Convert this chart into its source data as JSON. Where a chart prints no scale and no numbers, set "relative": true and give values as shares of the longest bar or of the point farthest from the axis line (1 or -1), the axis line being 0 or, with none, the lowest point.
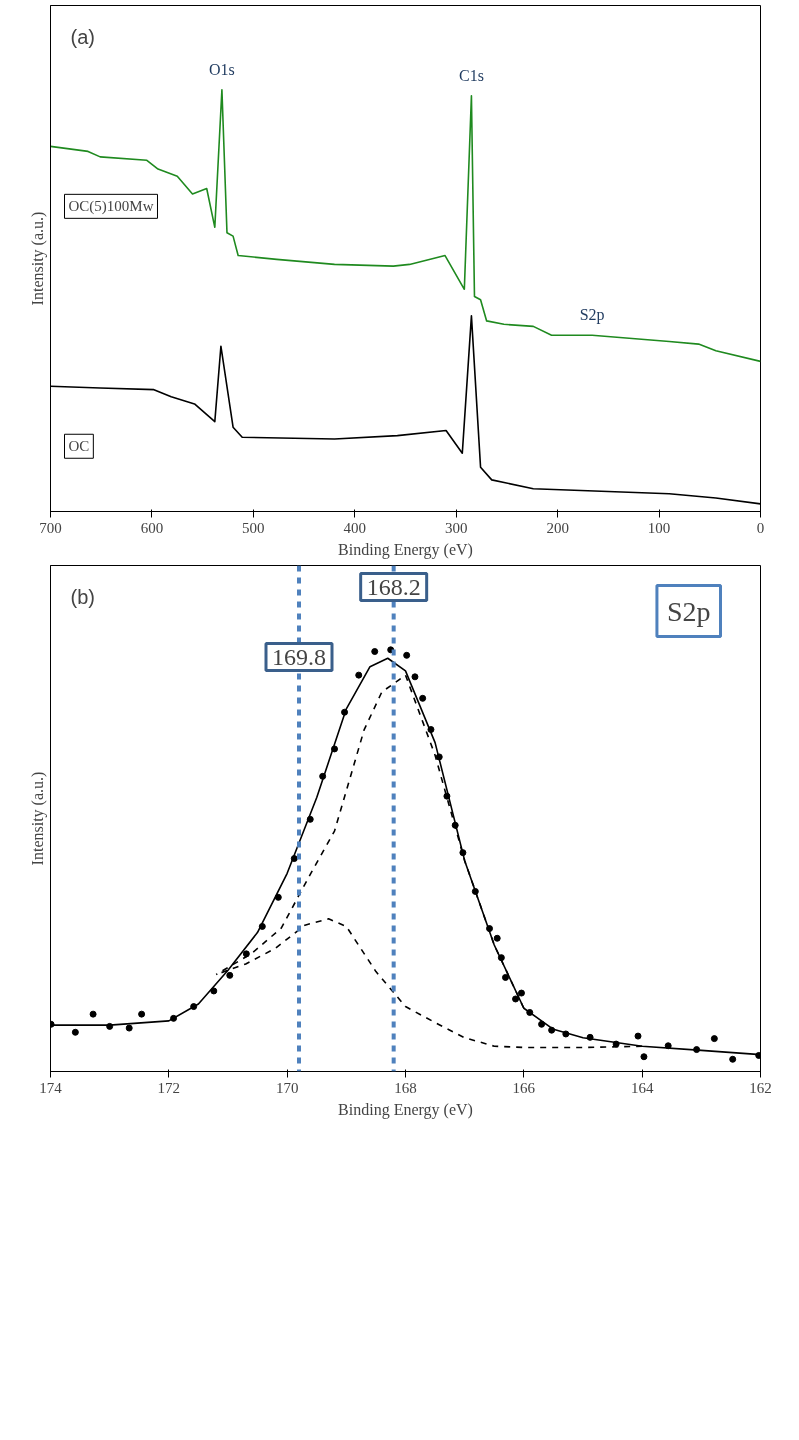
{
  "chart_data": [
    {
      "type": "line",
      "relative": true,
      "xlabel": "Binding Energy (eV)",
      "ylabel": "Intensity (a.u.)",
      "xlim": [
        700,
        0
      ],
      "xticks": [
        0,
        100,
        200,
        300,
        400,
        500,
        600,
        700
      ],
      "series": [
        {
          "name": "OC(5)100Mw",
          "color": "#1f8a1f",
          "x": [
            0,
            44,
            61,
            90,
            166,
            206,
            224,
            253,
            270,
            276,
            282,
            285,
            292,
            311,
            346,
            362,
            420,
            477,
            515,
            520,
            526,
            531,
            538,
            546,
            560,
            575,
            594,
            605,
            651,
            663,
            700
          ],
          "values": [
            0.356,
            0.381,
            0.397,
            0.403,
            0.418,
            0.418,
            0.439,
            0.444,
            0.452,
            0.502,
            0.51,
            0.986,
            0.527,
            0.607,
            0.586,
            0.582,
            0.586,
            0.598,
            0.607,
            0.653,
            0.661,
            1.0,
            0.674,
            0.766,
            0.753,
            0.795,
            0.812,
            0.833,
            0.841,
            0.854,
            0.866
          ]
        },
        {
          "name": "OC",
          "color": "#000000",
          "x": [
            0,
            44,
            90,
            224,
            265,
            276,
            285,
            294,
            310,
            358,
            420,
            511,
            520,
            532,
            538,
            558,
            581,
            598,
            651,
            700
          ],
          "values": [
            0.018,
            0.032,
            0.042,
            0.054,
            0.075,
            0.105,
            0.464,
            0.138,
            0.192,
            0.18,
            0.172,
            0.176,
            0.2,
            0.392,
            0.213,
            0.255,
            0.272,
            0.289,
            0.293,
            0.297
          ]
        }
      ],
      "annotations": [
        "(a)",
        {
          "text": "O1s",
          "x": 531,
          "y": 1.0
        },
        {
          "text": "C1s",
          "x": 285,
          "y": 0.986
        },
        {
          "text": "S2p",
          "x": 166,
          "y": 0.418
        }
      ]
    },
    {
      "type": "scatter",
      "relative": true,
      "xlabel": "Binding Energy (eV)",
      "ylabel": "Intensity (a.u.)",
      "xlim": [
        174,
        162
      ],
      "xticks": [
        162,
        164,
        166,
        168,
        170,
        172,
        174
      ],
      "series": [
        {
          "type": "scatter",
          "marker": "circle",
          "color": "#000000",
          "x": [
            162.03,
            162.47,
            162.78,
            163.08,
            163.56,
            163.97,
            164.07,
            164.44,
            164.88,
            165.29,
            165.53,
            165.7,
            165.9,
            166.04,
            166.14,
            166.31,
            166.38,
            166.45,
            166.58,
            166.82,
            167.03,
            167.16,
            167.3,
            167.43,
            167.57,
            167.71,
            167.84,
            167.98,
            168.25,
            168.52,
            168.79,
            169.03,
            169.2,
            169.4,
            169.61,
            169.88,
            170.15,
            170.42,
            170.69,
            170.97,
            171.24,
            171.58,
            171.92,
            172.46,
            172.67,
            173.0,
            173.28,
            173.58,
            173.99
          ],
          "values": [
            0.038,
            0.029,
            0.078,
            0.052,
            0.061,
            0.035,
            0.084,
            0.065,
            0.081,
            0.089,
            0.098,
            0.112,
            0.14,
            0.186,
            0.172,
            0.223,
            0.27,
            0.316,
            0.339,
            0.427,
            0.519,
            0.584,
            0.653,
            0.746,
            0.811,
            0.885,
            0.936,
            0.987,
            1.0,
            0.996,
            0.94,
            0.852,
            0.765,
            0.7,
            0.598,
            0.505,
            0.413,
            0.344,
            0.279,
            0.228,
            0.191,
            0.154,
            0.126,
            0.136,
            0.103,
            0.107,
            0.136,
            0.093,
            0.112
          ]
        },
        {
          "type": "line",
          "line_style": "solid",
          "color": "#000000",
          "x": [
            162,
            163,
            164,
            165,
            165.5,
            166,
            166.5,
            167,
            167.5,
            168,
            168.3,
            168.6,
            169,
            169.5,
            170,
            170.5,
            171,
            171.5,
            172,
            173,
            174
          ],
          "values": [
            0.04,
            0.05,
            0.06,
            0.08,
            0.1,
            0.15,
            0.3,
            0.5,
            0.78,
            0.95,
            0.98,
            0.96,
            0.86,
            0.65,
            0.47,
            0.33,
            0.24,
            0.16,
            0.12,
            0.11,
            0.11
          ]
        },
        {
          "type": "line",
          "line_style": "dashed",
          "color": "#000000",
          "x": [
            166,
            166.5,
            167,
            167.5,
            168,
            168.4,
            168.7,
            169.2,
            169.6,
            170.1,
            170.6,
            171.2
          ],
          "values": [
            0.15,
            0.3,
            0.5,
            0.75,
            0.94,
            0.9,
            0.81,
            0.57,
            0.47,
            0.34,
            0.28,
            0.23
          ]
        },
        {
          "type": "line",
          "line_style": "dashed",
          "color": "#000000",
          "x": [
            164,
            165,
            166,
            166.5,
            167,
            167.5,
            168,
            168.5,
            169,
            169.3,
            169.7,
            170.2,
            170.7,
            171.2
          ],
          "values": [
            0.06,
            0.057,
            0.057,
            0.06,
            0.08,
            0.116,
            0.154,
            0.237,
            0.344,
            0.362,
            0.347,
            0.292,
            0.255,
            0.23
          ]
        }
      ],
      "ref_lines": [
        {
          "axis": "x",
          "value": 168.2,
          "label": "168.2",
          "color": "#4f81bd",
          "line_style": "dashed"
        },
        {
          "axis": "x",
          "value": 169.8,
          "label": "169.8",
          "color": "#4f81bd",
          "line_style": "dashed"
        }
      ],
      "annotations": [
        "(b)",
        "S2p"
      ]
    }
  ]
}
